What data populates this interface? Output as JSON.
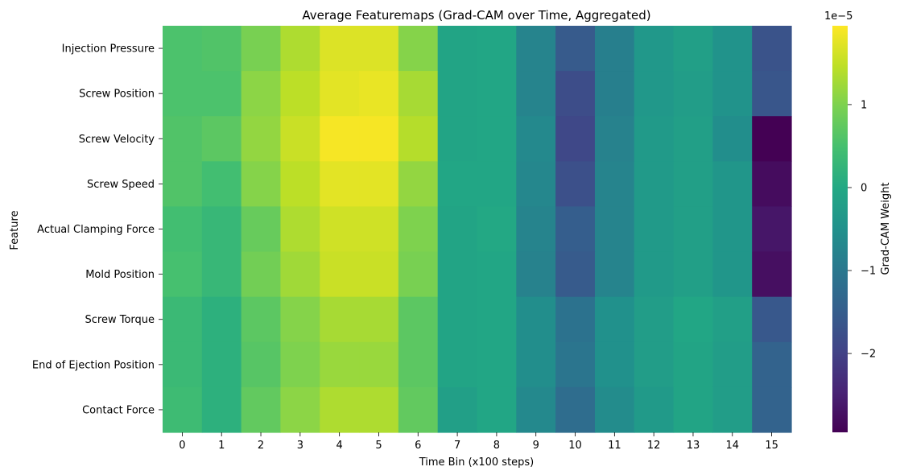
{
  "chart_data": {
    "type": "heatmap",
    "title": "Average Featuremaps (Grad-CAM over Time, Aggregated)",
    "xlabel": "Time Bin (x100 steps)",
    "ylabel": "Feature",
    "x_categories": [
      "0",
      "1",
      "2",
      "3",
      "4",
      "5",
      "6",
      "7",
      "8",
      "9",
      "10",
      "11",
      "12",
      "13",
      "14",
      "15"
    ],
    "y_categories": [
      "Injection Pressure",
      "Screw Position",
      "Screw Velocity",
      "Screw Speed",
      "Actual Clamping Force",
      "Mold Position",
      "Screw Torque",
      "End of Ejection Position",
      "Contact Force"
    ],
    "values_x1e-5": [
      [
        0.55,
        0.6,
        0.95,
        1.35,
        1.7,
        1.7,
        1.05,
        -0.1,
        -0.05,
        -0.75,
        -1.55,
        -0.85,
        -0.35,
        -0.2,
        -0.45,
        -1.7
      ],
      [
        0.55,
        0.55,
        1.1,
        1.45,
        1.75,
        1.8,
        1.3,
        -0.1,
        -0.05,
        -0.75,
        -1.8,
        -0.85,
        -0.35,
        -0.25,
        -0.45,
        -1.65
      ],
      [
        0.6,
        0.7,
        1.15,
        1.55,
        1.9,
        1.9,
        1.4,
        -0.1,
        -0.05,
        -0.65,
        -1.9,
        -0.8,
        -0.3,
        -0.2,
        -0.55,
        -2.95
      ],
      [
        0.6,
        0.45,
        1.05,
        1.45,
        1.75,
        1.75,
        1.15,
        -0.05,
        -0.05,
        -0.7,
        -1.75,
        -0.75,
        -0.3,
        -0.2,
        -0.4,
        -2.8
      ],
      [
        0.45,
        0.3,
        0.8,
        1.35,
        1.6,
        1.6,
        1.0,
        -0.1,
        0.0,
        -0.75,
        -1.5,
        -0.75,
        -0.3,
        -0.2,
        -0.4,
        -2.65
      ],
      [
        0.5,
        0.3,
        0.9,
        1.25,
        1.55,
        1.55,
        0.95,
        -0.1,
        -0.05,
        -0.8,
        -1.55,
        -0.75,
        -0.3,
        -0.2,
        -0.4,
        -2.75
      ],
      [
        0.35,
        0.15,
        0.7,
        1.05,
        1.3,
        1.3,
        0.7,
        -0.1,
        -0.05,
        -0.55,
        -1.1,
        -0.5,
        -0.25,
        -0.05,
        -0.2,
        -1.6
      ],
      [
        0.35,
        0.15,
        0.65,
        1.0,
        1.2,
        1.2,
        0.7,
        -0.1,
        -0.05,
        -0.55,
        -1.05,
        -0.5,
        -0.25,
        -0.1,
        -0.25,
        -1.4
      ],
      [
        0.4,
        0.15,
        0.75,
        1.1,
        1.35,
        1.35,
        0.75,
        -0.2,
        -0.05,
        -0.65,
        -1.2,
        -0.6,
        -0.3,
        -0.1,
        -0.25,
        -1.4
      ]
    ],
    "colormap": "viridis",
    "colorbar": {
      "label": "Grad-CAM Weight",
      "scale_label": "1e−5",
      "range_x1e-5": [
        -2.95,
        1.95
      ],
      "ticks": [
        1,
        0,
        -1,
        -2
      ],
      "tick_labels": [
        "1",
        "0",
        "−1",
        "−2"
      ]
    }
  }
}
